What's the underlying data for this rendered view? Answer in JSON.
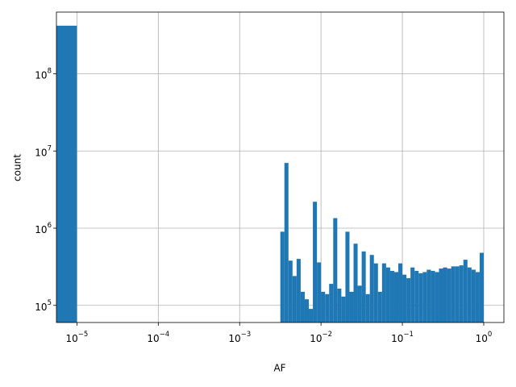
{
  "chart_data": {
    "type": "histogram",
    "xlabel": "AF",
    "ylabel": "count",
    "color": "#1f77b4",
    "xscale": "log",
    "yscale": "log",
    "grid": true,
    "bins": [
      0,
      1e-05,
      0.003162,
      0.003548,
      0.003981,
      0.004467,
      0.005012,
      0.005623,
      0.00631,
      0.007079,
      0.007943,
      0.008913,
      0.01,
      0.01122,
      0.01259,
      0.01413,
      0.01585,
      0.01778,
      0.01995,
      0.02239,
      0.02512,
      0.02818,
      0.03162,
      0.03548,
      0.03981,
      0.04467,
      0.05012,
      0.05623,
      0.0631,
      0.07079,
      0.07943,
      0.08913,
      0.1,
      0.1122,
      0.1259,
      0.1413,
      0.1585,
      0.1778,
      0.1995,
      0.2239,
      0.2512,
      0.2818,
      0.3162,
      0.3548,
      0.3981,
      0.4467,
      0.5012,
      0.5623,
      0.631,
      0.7079,
      0.7943,
      0.8913,
      1
    ],
    "values": [
      420000000,
      0,
      900000,
      7000000,
      380000,
      240000,
      400000,
      150000,
      120000,
      90000,
      2200000,
      360000,
      150000,
      140000,
      190000,
      1350000,
      165000,
      130000,
      900000,
      150000,
      630000,
      180000,
      500000,
      140000,
      450000,
      350000,
      150000,
      350000,
      310000,
      280000,
      270000,
      350000,
      250000,
      225000,
      310000,
      280000,
      260000,
      270000,
      290000,
      280000,
      270000,
      300000,
      310000,
      300000,
      320000,
      320000,
      330000,
      390000,
      310000,
      290000,
      270000,
      480000
    ],
    "xlim": [
      5.6e-06,
      1.77
    ],
    "ylim": [
      60000,
      630000000
    ],
    "xticks": [
      {
        "value": 1e-05,
        "label": "10",
        "exponent": "−5"
      },
      {
        "value": 0.0001,
        "label": "10",
        "exponent": "−4"
      },
      {
        "value": 0.001,
        "label": "10",
        "exponent": "−3"
      },
      {
        "value": 0.01,
        "label": "10",
        "exponent": "−2"
      },
      {
        "value": 0.1,
        "label": "10",
        "exponent": "−1"
      },
      {
        "value": 1,
        "label": "10",
        "exponent": "0"
      }
    ],
    "yticks": [
      {
        "value": 100000,
        "label": "10",
        "exponent": "5"
      },
      {
        "value": 1000000,
        "label": "10",
        "exponent": "6"
      },
      {
        "value": 10000000,
        "label": "10",
        "exponent": "7"
      },
      {
        "value": 100000000,
        "label": "10",
        "exponent": "8"
      }
    ]
  }
}
